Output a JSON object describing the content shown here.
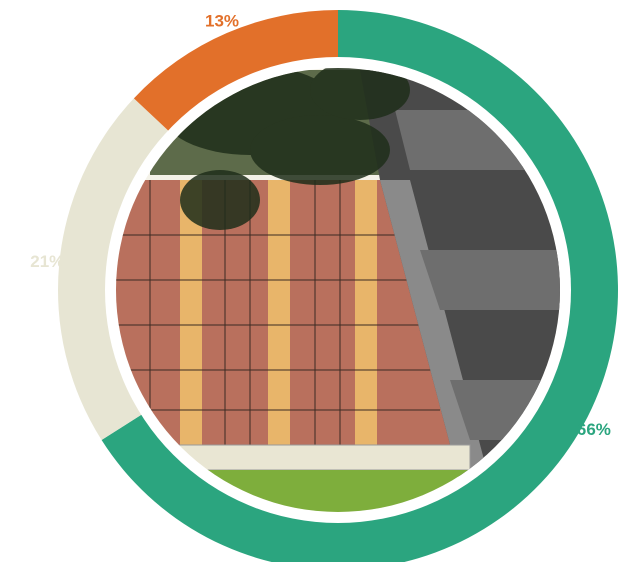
{
  "chart_data": {
    "type": "donut",
    "values": [
      66,
      21,
      13
    ],
    "value_labels": [
      "66%",
      "21%",
      "13%"
    ],
    "colors": [
      "#2ba57f",
      "#e7e5d3",
      "#e2702a"
    ]
  }
}
